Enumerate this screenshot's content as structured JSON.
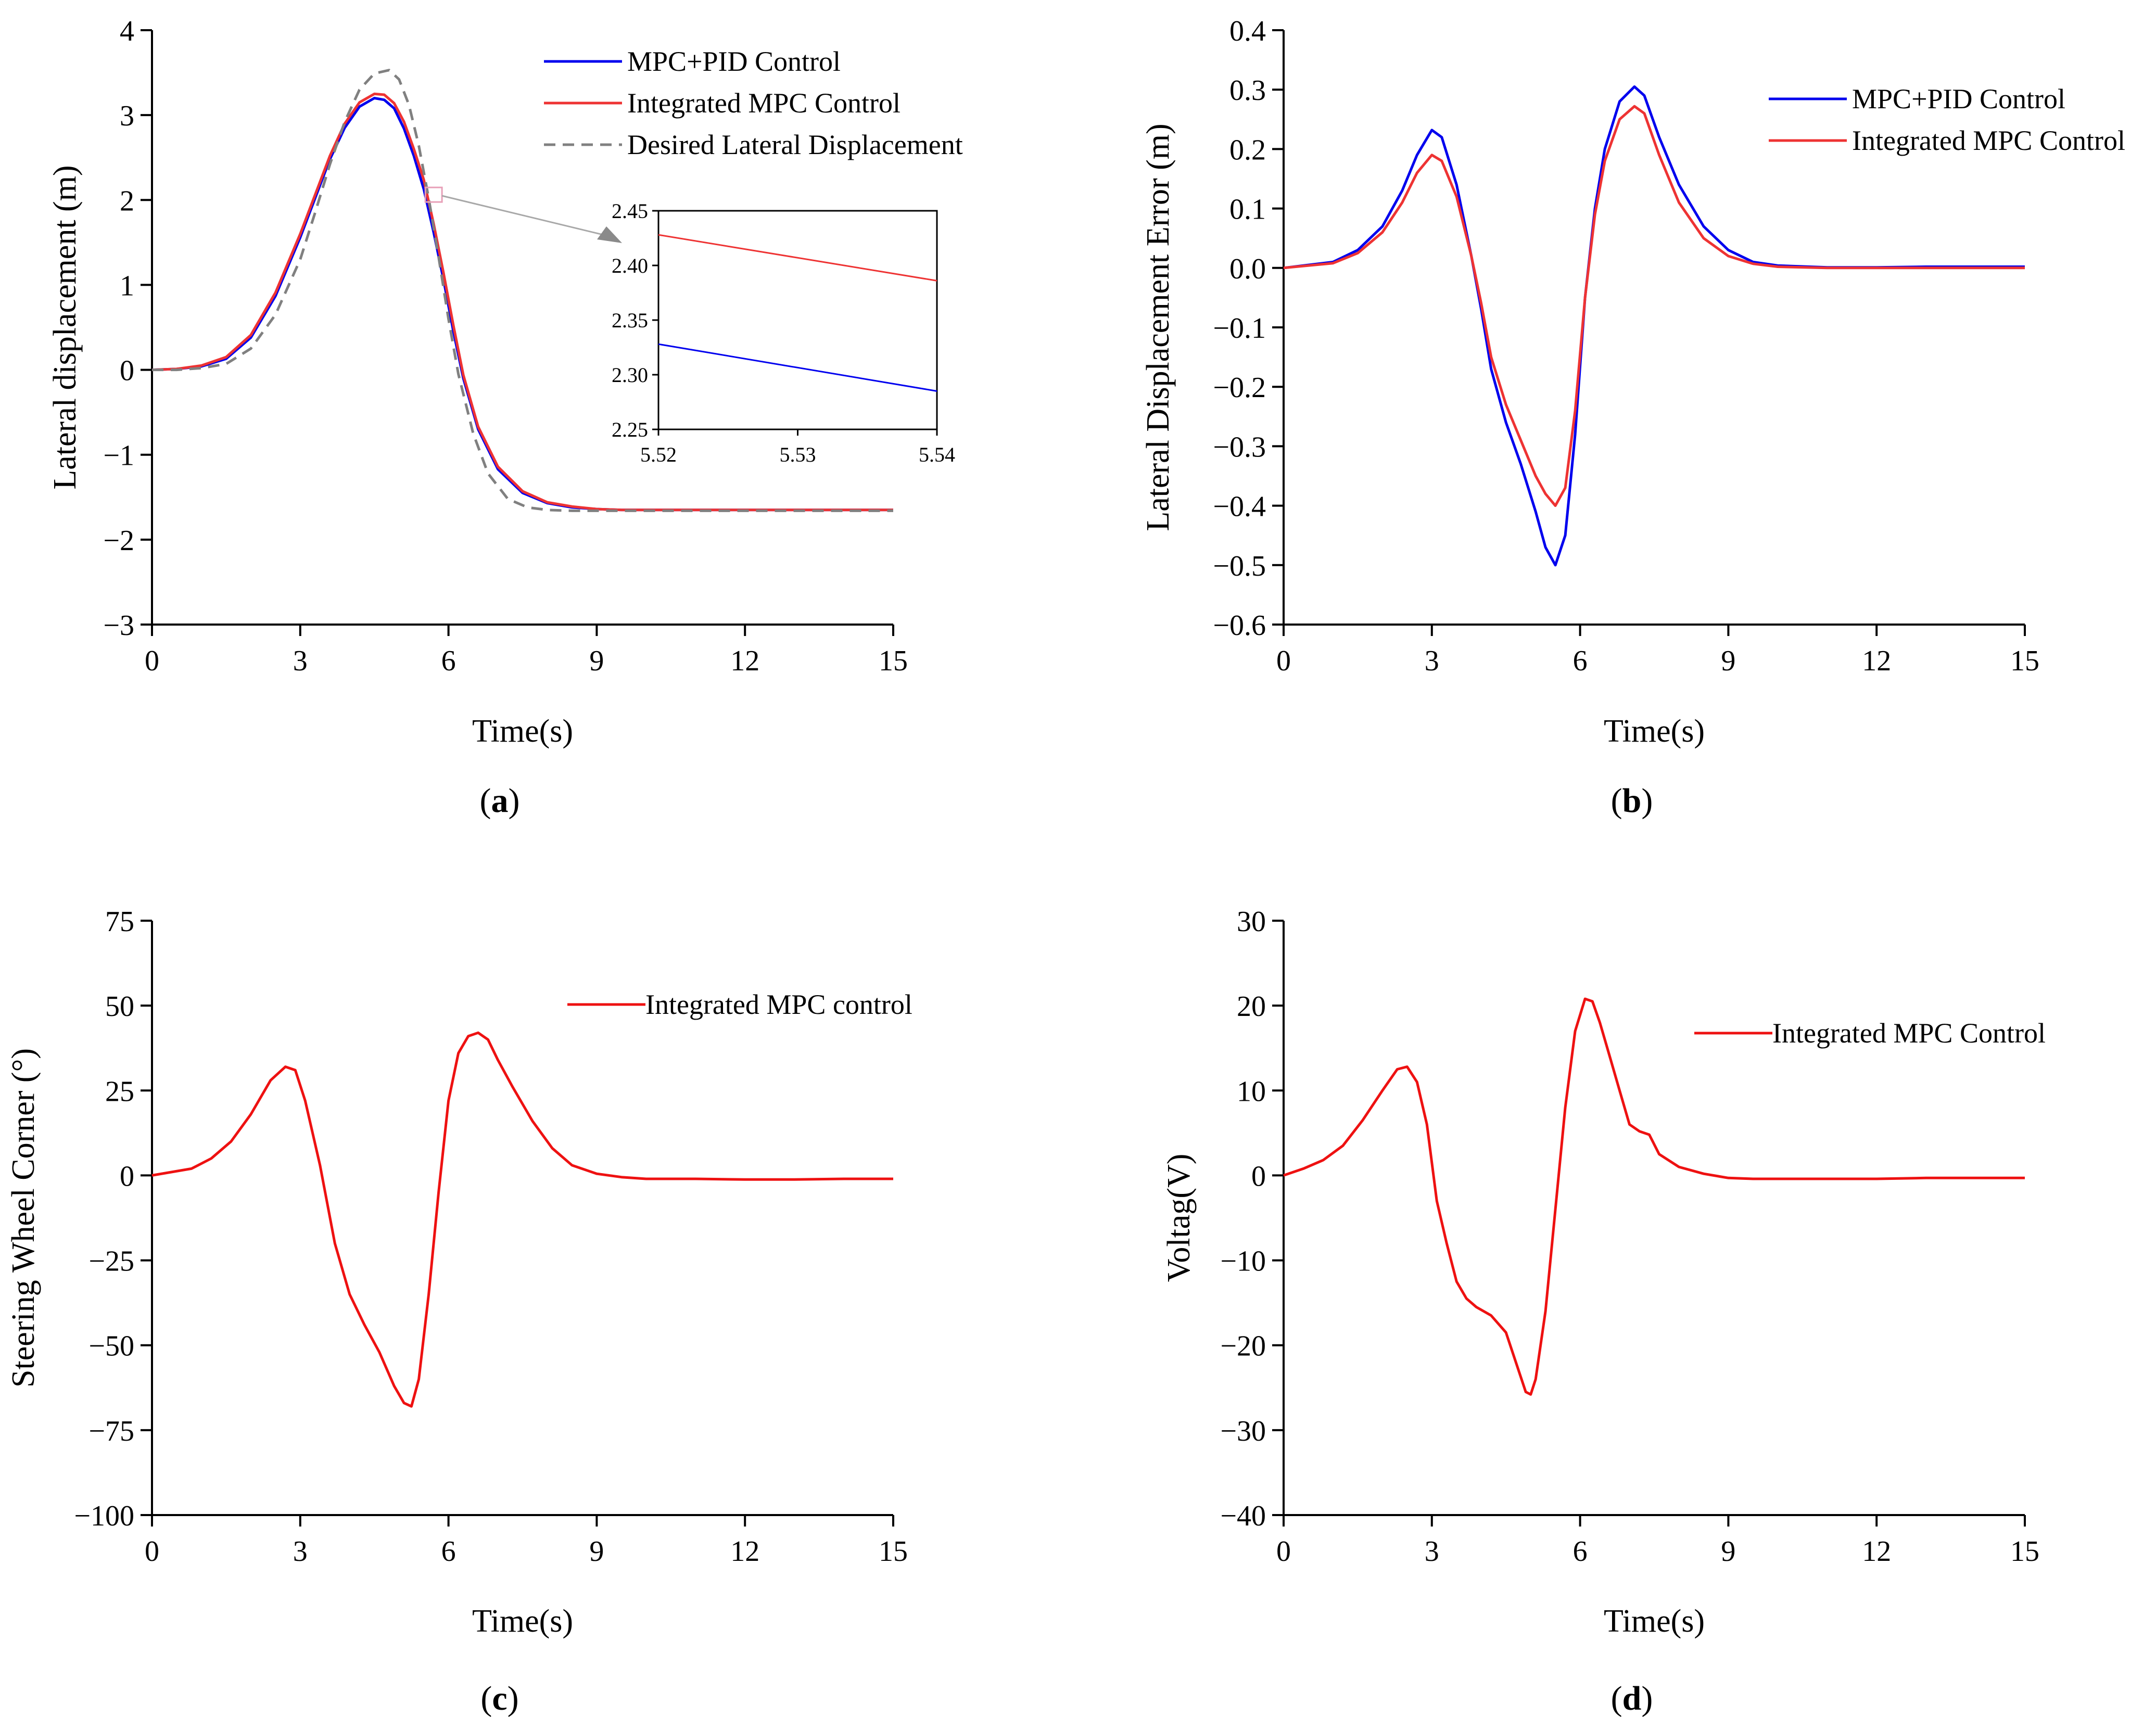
{
  "figure": {
    "panels": [
      "a",
      "b",
      "c",
      "d"
    ]
  },
  "chart_data": [
    {
      "id": "a",
      "type": "line",
      "caption": "a",
      "xlabel": "Time(s)",
      "ylabel": "Lateral displacement (m)",
      "xlim": [
        0,
        15
      ],
      "ylim": [
        -3,
        4
      ],
      "xticks": [
        0,
        3,
        6,
        9,
        12,
        15
      ],
      "yticks": [
        -3,
        -2,
        -1,
        0,
        1,
        2,
        3,
        4
      ],
      "xtick_labels": [
        "0",
        "3",
        "6",
        "9",
        "12",
        "15"
      ],
      "ytick_labels": [
        "−3",
        "−2",
        "−1",
        "0",
        "1",
        "2",
        "3",
        "4"
      ],
      "legend_position": "top-right",
      "series": [
        {
          "name": "MPC+PID Control",
          "color": "#0000ee",
          "style": "solid",
          "x": [
            0,
            0.5,
            1,
            1.5,
            2,
            2.5,
            3,
            3.3,
            3.6,
            3.9,
            4.2,
            4.5,
            4.7,
            4.9,
            5.1,
            5.3,
            5.5,
            5.7,
            5.9,
            6.1,
            6.3,
            6.6,
            7,
            7.5,
            8,
            8.5,
            9,
            9.5,
            10,
            11,
            12,
            13,
            14,
            15
          ],
          "y": [
            0,
            0.01,
            0.04,
            0.13,
            0.38,
            0.87,
            1.56,
            2.02,
            2.48,
            2.85,
            3.1,
            3.2,
            3.18,
            3.08,
            2.84,
            2.52,
            2.13,
            1.62,
            1.06,
            0.45,
            -0.1,
            -0.7,
            -1.17,
            -1.45,
            -1.57,
            -1.62,
            -1.64,
            -1.65,
            -1.65,
            -1.65,
            -1.65,
            -1.65,
            -1.65,
            -1.65
          ]
        },
        {
          "name": "Integrated MPC Control",
          "color": "#ee3333",
          "style": "solid",
          "x": [
            0,
            0.5,
            1,
            1.5,
            2,
            2.5,
            3,
            3.3,
            3.6,
            3.9,
            4.2,
            4.5,
            4.7,
            4.9,
            5.1,
            5.3,
            5.5,
            5.7,
            5.9,
            6.1,
            6.3,
            6.6,
            7,
            7.5,
            8,
            8.5,
            9,
            9.5,
            10,
            11,
            12,
            13,
            14,
            15
          ],
          "y": [
            0,
            0.01,
            0.05,
            0.15,
            0.41,
            0.91,
            1.6,
            2.06,
            2.52,
            2.9,
            3.15,
            3.25,
            3.24,
            3.14,
            2.92,
            2.6,
            2.24,
            1.72,
            1.14,
            0.52,
            -0.06,
            -0.67,
            -1.14,
            -1.43,
            -1.56,
            -1.61,
            -1.64,
            -1.65,
            -1.65,
            -1.65,
            -1.65,
            -1.65,
            -1.65,
            -1.65
          ]
        },
        {
          "name": "Desired Lateral Displacement",
          "color": "#808080",
          "style": "dashed",
          "x": [
            0,
            0.5,
            1,
            1.5,
            2,
            2.5,
            3,
            3.3,
            3.6,
            3.9,
            4.2,
            4.5,
            4.8,
            5.0,
            5.2,
            5.4,
            5.6,
            5.8,
            6.0,
            6.2,
            6.5,
            6.8,
            7.2,
            7.6,
            8,
            8.5,
            9,
            10,
            11,
            12,
            13,
            14,
            15
          ],
          "y": [
            0,
            0.0,
            0.02,
            0.07,
            0.25,
            0.65,
            1.3,
            1.85,
            2.42,
            2.92,
            3.3,
            3.49,
            3.53,
            3.42,
            3.12,
            2.64,
            2.02,
            1.33,
            0.6,
            -0.05,
            -0.75,
            -1.22,
            -1.52,
            -1.62,
            -1.65,
            -1.66,
            -1.66,
            -1.66,
            -1.66,
            -1.66,
            -1.66,
            -1.66,
            -1.66
          ]
        }
      ],
      "inset": {
        "xlim": [
          5.52,
          5.54
        ],
        "ylim": [
          2.25,
          2.45
        ],
        "xticks": [
          5.52,
          5.53,
          5.54
        ],
        "yticks": [
          2.25,
          2.3,
          2.35,
          2.4,
          2.45
        ],
        "xtick_labels": [
          "5.52",
          "5.53",
          "5.54"
        ],
        "ytick_labels": [
          "2.25",
          "2.30",
          "2.35",
          "2.40",
          "2.45"
        ],
        "series": [
          {
            "name": "Integrated MPC Control",
            "color": "#ee3333",
            "x": [
              5.52,
              5.54
            ],
            "y": [
              2.428,
              2.386
            ]
          },
          {
            "name": "MPC+PID Control",
            "color": "#0000ee",
            "x": [
              5.52,
              5.54
            ],
            "y": [
              2.328,
              2.285
            ]
          }
        ],
        "zoom_box_center": {
          "x": 5.7,
          "y": 2.05
        }
      }
    },
    {
      "id": "b",
      "type": "line",
      "caption": "b",
      "xlabel": "Time(s)",
      "ylabel": "Lateral Displacement Error (m)",
      "xlim": [
        0,
        15
      ],
      "ylim": [
        -0.6,
        0.4
      ],
      "xticks": [
        0,
        3,
        6,
        9,
        12,
        15
      ],
      "yticks": [
        -0.6,
        -0.5,
        -0.4,
        -0.3,
        -0.2,
        -0.1,
        0.0,
        0.1,
        0.2,
        0.3,
        0.4
      ],
      "xtick_labels": [
        "0",
        "3",
        "6",
        "9",
        "12",
        "15"
      ],
      "ytick_labels": [
        "−0.6",
        "−0.5",
        "−0.4",
        "−0.3",
        "−0.2",
        "−0.1",
        "0.0",
        "0.1",
        "0.2",
        "0.3",
        "0.4"
      ],
      "legend_position": "top-right",
      "series": [
        {
          "name": "MPC+PID Control",
          "color": "#0000ee",
          "style": "solid",
          "x": [
            0,
            1,
            1.5,
            2,
            2.4,
            2.7,
            3.0,
            3.2,
            3.5,
            3.8,
            4.0,
            4.2,
            4.5,
            4.8,
            5.1,
            5.3,
            5.5,
            5.7,
            5.9,
            6.1,
            6.3,
            6.5,
            6.8,
            7.1,
            7.3,
            7.6,
            8,
            8.5,
            9,
            9.5,
            10,
            11,
            12,
            13,
            14,
            15
          ],
          "y": [
            0,
            0.01,
            0.03,
            0.07,
            0.13,
            0.19,
            0.232,
            0.22,
            0.14,
            0.02,
            -0.07,
            -0.17,
            -0.26,
            -0.33,
            -0.41,
            -0.47,
            -0.5,
            -0.45,
            -0.28,
            -0.05,
            0.1,
            0.2,
            0.28,
            0.305,
            0.29,
            0.22,
            0.14,
            0.07,
            0.03,
            0.01,
            0.004,
            0.001,
            0.001,
            0.002,
            0.002,
            0.002
          ]
        },
        {
          "name": "Integrated MPC Control",
          "color": "#ee3333",
          "style": "solid",
          "x": [
            0,
            1,
            1.5,
            2,
            2.4,
            2.7,
            3.0,
            3.2,
            3.5,
            3.8,
            4.0,
            4.2,
            4.5,
            4.8,
            5.1,
            5.3,
            5.5,
            5.7,
            5.9,
            6.1,
            6.3,
            6.5,
            6.8,
            7.1,
            7.3,
            7.6,
            8,
            8.5,
            9,
            9.5,
            10,
            11,
            12,
            13,
            14,
            15
          ],
          "y": [
            0,
            0.008,
            0.025,
            0.06,
            0.11,
            0.16,
            0.19,
            0.18,
            0.12,
            0.02,
            -0.06,
            -0.15,
            -0.23,
            -0.29,
            -0.35,
            -0.38,
            -0.4,
            -0.37,
            -0.24,
            -0.05,
            0.09,
            0.18,
            0.25,
            0.272,
            0.26,
            0.19,
            0.11,
            0.05,
            0.02,
            0.007,
            0.002,
            0.0,
            0.0,
            0.0,
            0.0,
            0.0
          ]
        }
      ]
    },
    {
      "id": "c",
      "type": "line",
      "caption": "c",
      "xlabel": "Time(s)",
      "ylabel": "Steering Wheel Corner (°)",
      "xlim": [
        0,
        15
      ],
      "ylim": [
        -100,
        75
      ],
      "xticks": [
        0,
        3,
        6,
        9,
        12,
        15
      ],
      "yticks": [
        -100,
        -75,
        -50,
        -25,
        0,
        25,
        50,
        75
      ],
      "xtick_labels": [
        "0",
        "3",
        "6",
        "9",
        "12",
        "15"
      ],
      "ytick_labels": [
        "−100",
        "−75",
        "−50",
        "−25",
        "0",
        "25",
        "50",
        "75"
      ],
      "legend_position": "top-right",
      "series": [
        {
          "name": "Integrated MPC control",
          "color": "#ee1111",
          "style": "solid",
          "x": [
            0,
            0.4,
            0.8,
            1.2,
            1.6,
            2.0,
            2.4,
            2.7,
            2.9,
            3.1,
            3.4,
            3.7,
            4.0,
            4.3,
            4.6,
            4.9,
            5.1,
            5.25,
            5.4,
            5.6,
            5.8,
            6.0,
            6.2,
            6.4,
            6.6,
            6.8,
            7.0,
            7.3,
            7.7,
            8.1,
            8.5,
            9.0,
            9.5,
            10,
            11,
            12,
            13,
            14,
            15
          ],
          "y": [
            0,
            1,
            2,
            5,
            10,
            18,
            28,
            32,
            31,
            22,
            3,
            -20,
            -35,
            -44,
            -52,
            -62,
            -67,
            -68,
            -60,
            -35,
            -5,
            22,
            36,
            41,
            42,
            40,
            34,
            26,
            16,
            8,
            3,
            0.5,
            -0.5,
            -1,
            -1,
            -1.2,
            -1.2,
            -1,
            -1
          ]
        }
      ]
    },
    {
      "id": "d",
      "type": "line",
      "caption": "d",
      "xlabel": "Time(s)",
      "ylabel": "Voltag(V)",
      "xlim": [
        0,
        15
      ],
      "ylim": [
        -40,
        30
      ],
      "xticks": [
        0,
        3,
        6,
        9,
        12,
        15
      ],
      "yticks": [
        -40,
        -30,
        -20,
        -10,
        0,
        10,
        20,
        30
      ],
      "xtick_labels": [
        "0",
        "3",
        "6",
        "9",
        "12",
        "15"
      ],
      "ytick_labels": [
        "−40",
        "−30",
        "−20",
        "−10",
        "0",
        "10",
        "20",
        "30"
      ],
      "legend_position": "top-right",
      "series": [
        {
          "name": "Integrated MPC Control",
          "color": "#ee1111",
          "style": "solid",
          "x": [
            0,
            0.4,
            0.8,
            1.2,
            1.6,
            2.0,
            2.3,
            2.5,
            2.7,
            2.9,
            3.1,
            3.3,
            3.5,
            3.7,
            3.9,
            4.2,
            4.5,
            4.7,
            4.9,
            5.0,
            5.1,
            5.3,
            5.5,
            5.7,
            5.9,
            6.1,
            6.25,
            6.4,
            6.6,
            6.8,
            7.0,
            7.2,
            7.4,
            7.6,
            8.0,
            8.5,
            9,
            9.5,
            10,
            11,
            12,
            13,
            14,
            15
          ],
          "y": [
            0,
            0.8,
            1.8,
            3.5,
            6.5,
            10,
            12.5,
            12.8,
            11,
            6,
            -3,
            -8,
            -12.5,
            -14.5,
            -15.5,
            -16.5,
            -18.5,
            -22,
            -25.5,
            -25.8,
            -24,
            -16,
            -4,
            8,
            17,
            20.8,
            20.5,
            18,
            14,
            10,
            6,
            5.2,
            4.8,
            2.5,
            1,
            0.2,
            -0.3,
            -0.4,
            -0.4,
            -0.4,
            -0.4,
            -0.3,
            -0.3,
            -0.3
          ]
        }
      ]
    }
  ]
}
